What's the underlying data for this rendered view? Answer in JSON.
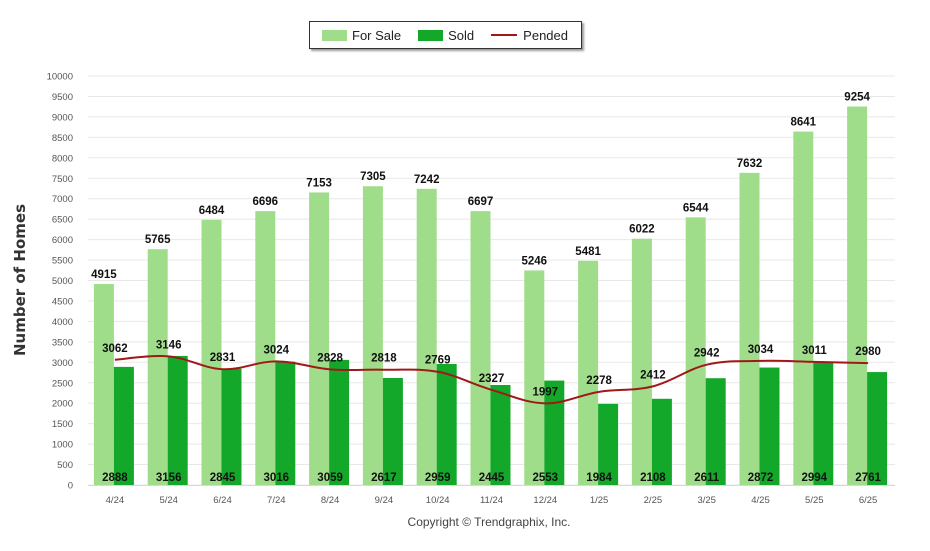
{
  "chart_data": {
    "type": "bar",
    "title": "",
    "xlabel": "",
    "ylabel": "Number of Homes",
    "ylim": [
      0,
      10000
    ],
    "ytick_step": 500,
    "grid": true,
    "legend_position": "top-center",
    "categories": [
      "4/24",
      "5/24",
      "6/24",
      "7/24",
      "8/24",
      "9/24",
      "10/24",
      "11/24",
      "12/24",
      "1/25",
      "2/25",
      "3/25",
      "4/25",
      "5/25",
      "6/25"
    ],
    "series": [
      {
        "name": "For Sale",
        "type": "bar",
        "color": "#a0dd8a",
        "values": [
          4915,
          5765,
          6484,
          6696,
          7153,
          7305,
          7242,
          6697,
          5246,
          5481,
          6022,
          6544,
          7632,
          8641,
          9254
        ]
      },
      {
        "name": "Sold",
        "type": "bar",
        "color": "#14a82a",
        "values": [
          2888,
          3156,
          2845,
          3016,
          3059,
          2617,
          2959,
          2445,
          2553,
          1984,
          2108,
          2611,
          2872,
          2994,
          2761
        ]
      },
      {
        "name": "Pended",
        "type": "line",
        "color": "#a01818",
        "values": [
          3062,
          3146,
          2831,
          3024,
          2828,
          2818,
          2769,
          2327,
          1997,
          2278,
          2412,
          2942,
          3034,
          3011,
          2980
        ]
      }
    ]
  },
  "legend": {
    "items": [
      {
        "label": "For Sale",
        "color": "#a0dd8a",
        "kind": "swatch"
      },
      {
        "label": "Sold",
        "color": "#14a82a",
        "kind": "swatch"
      },
      {
        "label": "Pended",
        "color": "#a01818",
        "kind": "line"
      }
    ]
  },
  "footer": {
    "copyright": "Copyright © Trendgraphix, Inc."
  }
}
